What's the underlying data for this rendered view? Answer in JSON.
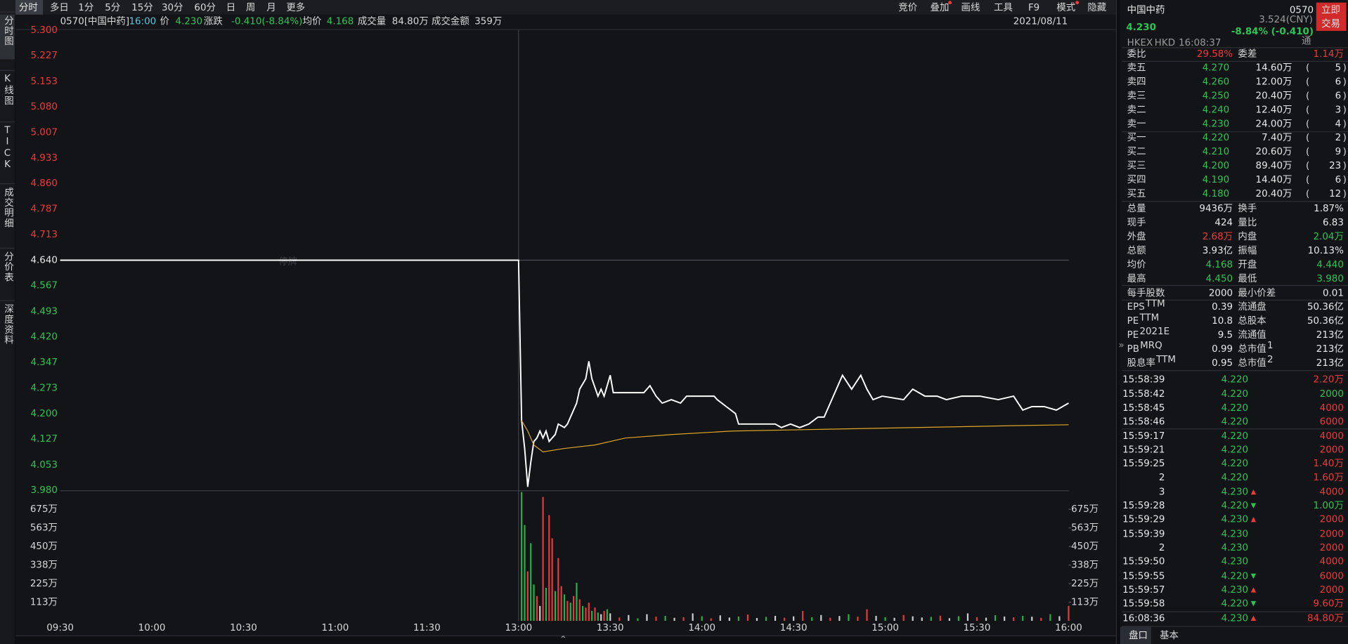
{
  "toolbar": {
    "tabs": [
      "分时",
      "多日",
      "1分",
      "5分",
      "15分",
      "30分",
      "60分",
      "日",
      "周",
      "月",
      "更多"
    ],
    "tools": [
      "竞价",
      "叠加",
      "画线",
      "工具",
      "F9",
      "模式",
      "隐藏"
    ]
  },
  "info": {
    "code": "0570[中国中药]",
    "time": "16:00",
    "price_label": "价",
    "price": "4.230",
    "change_label": "涨跌",
    "change": "-0.410(-8.84%)",
    "avg_label": "均价",
    "avg": "4.168",
    "volume_label": "成交量",
    "volume": "84.80万",
    "amount_label": "成交金额",
    "amount": "359万",
    "date": "2021/08/11"
  },
  "sidebar": [
    "分时图",
    "K线图",
    "TICK",
    "成交明细",
    "分价表",
    "深度资料"
  ],
  "chart_data": {
    "type": "line",
    "annotation": "停牌",
    "xlim": [
      0,
      330
    ],
    "xticks": [
      {
        "value": 0,
        "label": "09:30"
      },
      {
        "value": 30,
        "label": "10:00"
      },
      {
        "value": 60,
        "label": "10:30"
      },
      {
        "value": 90,
        "label": "11:00"
      },
      {
        "value": 120,
        "label": "11:30"
      },
      {
        "value": 150,
        "label": "13:00"
      },
      {
        "value": 180,
        "label": "13:30"
      },
      {
        "value": 210,
        "label": "14:00"
      },
      {
        "value": 240,
        "label": "14:30"
      },
      {
        "value": 270,
        "label": "15:00"
      },
      {
        "value": 300,
        "label": "15:30"
      },
      {
        "value": 330,
        "label": "16:00"
      }
    ],
    "ylim": [
      3.98,
      5.3
    ],
    "yticks": [
      {
        "value": 5.3,
        "label": "5.300"
      },
      {
        "value": 5.227,
        "label": "5.227"
      },
      {
        "value": 5.153,
        "label": "5.153"
      },
      {
        "value": 5.08,
        "label": "5.080"
      },
      {
        "value": 5.007,
        "label": "5.007"
      },
      {
        "value": 4.933,
        "label": "4.933"
      },
      {
        "value": 4.86,
        "label": "4.860"
      },
      {
        "value": 4.787,
        "label": "4.787"
      },
      {
        "value": 4.713,
        "label": "4.713"
      },
      {
        "value": 4.64,
        "label": "4.640"
      },
      {
        "value": 4.567,
        "label": "4.567"
      },
      {
        "value": 4.493,
        "label": "4.493"
      },
      {
        "value": 4.42,
        "label": "4.420"
      },
      {
        "value": 4.347,
        "label": "4.347"
      },
      {
        "value": 4.273,
        "label": "4.273"
      },
      {
        "value": 4.2,
        "label": "4.200"
      },
      {
        "value": 4.127,
        "label": "4.127"
      },
      {
        "value": 4.053,
        "label": "4.053"
      },
      {
        "value": 3.98,
        "label": "3.980"
      }
    ],
    "series": [
      {
        "color": "#ffffff",
        "x": [
          0,
          150,
          151,
          152,
          153,
          154,
          155,
          156,
          157,
          158,
          159,
          160,
          162,
          163,
          165,
          166,
          167,
          169,
          170,
          172,
          173,
          174,
          176,
          177,
          178,
          180,
          181,
          182,
          186,
          191,
          193,
          195,
          197,
          200,
          203,
          205,
          207,
          210,
          214,
          215,
          218,
          221,
          222,
          225,
          228,
          231,
          234,
          236,
          239,
          242,
          245,
          248,
          250,
          253,
          256,
          259,
          262,
          264,
          266,
          269,
          276,
          279,
          283,
          287,
          290,
          295,
          301,
          307,
          312,
          315,
          318,
          322,
          326,
          330
        ],
        "values": [
          4.64,
          4.64,
          4.18,
          4.1,
          3.99,
          4.06,
          4.12,
          4.13,
          4.15,
          4.13,
          4.15,
          4.12,
          4.14,
          4.17,
          4.16,
          4.17,
          4.19,
          4.23,
          4.27,
          4.3,
          4.35,
          4.3,
          4.25,
          4.27,
          4.25,
          4.31,
          4.26,
          4.26,
          4.26,
          4.26,
          4.28,
          4.25,
          4.23,
          4.24,
          4.23,
          4.25,
          4.25,
          4.25,
          4.25,
          4.24,
          4.22,
          4.2,
          4.17,
          4.17,
          4.17,
          4.17,
          4.17,
          4.16,
          4.17,
          4.16,
          4.17,
          4.19,
          4.19,
          4.25,
          4.31,
          4.27,
          4.31,
          4.27,
          4.24,
          4.25,
          4.24,
          4.27,
          4.25,
          4.25,
          4.24,
          4.25,
          4.25,
          4.24,
          4.25,
          4.21,
          4.22,
          4.22,
          4.21,
          4.23
        ]
      },
      {
        "color": "#e0a526",
        "x": [
          151,
          153,
          155,
          158,
          165,
          175,
          185,
          200,
          220,
          250,
          280,
          310,
          330
        ],
        "values": [
          4.18,
          4.15,
          4.11,
          4.09,
          4.1,
          4.11,
          4.13,
          4.14,
          4.15,
          4.155,
          4.16,
          4.165,
          4.168
        ]
      }
    ],
    "volume": {
      "ylim": [
        0,
        785
      ],
      "yticks": [
        {
          "value": 112.5,
          "label": "113万"
        },
        {
          "value": 225,
          "label": "225万"
        },
        {
          "value": 337.5,
          "label": "338万"
        },
        {
          "value": 450,
          "label": "450万"
        },
        {
          "value": 562.5,
          "label": "563万"
        },
        {
          "value": 675,
          "label": "675万"
        }
      ],
      "x": [
        151,
        152,
        153,
        154,
        155,
        156,
        157,
        158,
        159,
        160,
        161,
        162,
        163,
        164,
        165,
        166,
        167,
        168,
        169,
        170,
        171,
        172,
        173,
        174,
        175,
        176,
        177,
        178,
        179,
        180,
        183,
        186,
        189,
        192,
        195,
        198,
        201,
        204,
        207,
        210,
        213,
        216,
        219,
        222,
        225,
        228,
        231,
        234,
        237,
        240,
        243,
        246,
        249,
        252,
        255,
        258,
        261,
        264,
        267,
        270,
        273,
        276,
        279,
        282,
        285,
        288,
        291,
        294,
        297,
        300,
        303,
        306,
        309,
        312,
        315,
        318,
        321,
        324,
        327,
        330
      ],
      "values": [
        780,
        580,
        300,
        470,
        220,
        150,
        90,
        750,
        200,
        640,
        500,
        180,
        380,
        210,
        160,
        120,
        110,
        150,
        230,
        130,
        90,
        80,
        110,
        60,
        80,
        50,
        40,
        60,
        70,
        45,
        20,
        35,
        15,
        40,
        25,
        30,
        18,
        22,
        45,
        28,
        15,
        33,
        20,
        26,
        38,
        17,
        24,
        30,
        19,
        27,
        60,
        22,
        35,
        18,
        29,
        40,
        25,
        70,
        30,
        22,
        18,
        35,
        27,
        20,
        24,
        31,
        16,
        28,
        45,
        22,
        19,
        34,
        26,
        21,
        30,
        25,
        18,
        40,
        28,
        90
      ],
      "colors": [
        "#27b04a",
        "#27b04a",
        "#e23b3b",
        "#27b04a",
        "#27b04a",
        "#e23b3b",
        "#cfcfcf",
        "#e23b3b",
        "#27b04a",
        "#e23b3b",
        "#e23b3b",
        "#27b04a",
        "#e23b3b",
        "#e23b3b",
        "#27b04a",
        "#e23b3b",
        "#27b04a",
        "#e23b3b",
        "#27b04a",
        "#e23b3b",
        "#27b04a",
        "#e23b3b",
        "#e23b3b",
        "#27b04a",
        "#e23b3b",
        "#27b04a",
        "#cfcfcf",
        "#e23b3b",
        "#27b04a",
        "#cfcfcf",
        "#e23b3b",
        "#cfcfcf",
        "#27b04a",
        "#cfcfcf",
        "#e23b3b",
        "#27b04a",
        "#cfcfcf",
        "#e23b3b",
        "#cfcfcf",
        "#27b04a",
        "#e23b3b",
        "#cfcfcf",
        "#cfcfcf",
        "#27b04a",
        "#e23b3b",
        "#cfcfcf",
        "#27b04a",
        "#cfcfcf",
        "#e23b3b",
        "#cfcfcf",
        "#e23b3b",
        "#27b04a",
        "#cfcfcf",
        "#e23b3b",
        "#cfcfcf",
        "#27b04a",
        "#e23b3b",
        "#e23b3b",
        "#cfcfcf",
        "#27b04a",
        "#cfcfcf",
        "#e23b3b",
        "#cfcfcf",
        "#cfcfcf",
        "#27b04a",
        "#e23b3b",
        "#cfcfcf",
        "#27b04a",
        "#cfcfcf",
        "#e23b3b",
        "#cfcfcf",
        "#27b04a",
        "#cfcfcf",
        "#e23b3b",
        "#27b04a",
        "#cfcfcf",
        "#e23b3b",
        "#27b04a",
        "#cfcfcf",
        "#e23b3b"
      ]
    }
  },
  "quote": {
    "name": "中国中药",
    "code": "0570",
    "trade_button": [
      "立即",
      "交易"
    ],
    "price": "4.230",
    "cny": "3.524(CNY)",
    "change": "-8.84% (-0.410)",
    "exchange": "HKEX",
    "currency": "HKD",
    "time": "16:08:37",
    "tong": "通",
    "ratio_label": "委比",
    "ratio": "29.58%",
    "diff_label": "委差",
    "diff": "1.14万"
  },
  "order_book": [
    [
      "卖五",
      "4.270",
      "14.60万",
      "5"
    ],
    [
      "卖四",
      "4.260",
      "12.00万",
      "6"
    ],
    [
      "卖三",
      "4.250",
      "20.40万",
      "6"
    ],
    [
      "卖二",
      "4.240",
      "12.40万",
      "3"
    ],
    [
      "卖一",
      "4.230",
      "24.00万",
      "4"
    ],
    [
      "买一",
      "4.220",
      "7.40万",
      "2"
    ],
    [
      "买二",
      "4.210",
      "20.60万",
      "9"
    ],
    [
      "买三",
      "4.200",
      "89.40万",
      "23"
    ],
    [
      "买四",
      "4.190",
      "14.40万",
      "6"
    ],
    [
      "买五",
      "4.180",
      "20.40万",
      "12"
    ]
  ],
  "stats": [
    {
      "l1": "总量",
      "v1": "9436万",
      "c1": "white",
      "l2": "换手",
      "v2": "1.87%",
      "c2": "white"
    },
    {
      "l1": "现手",
      "v1": "424",
      "c1": "white",
      "l2": "量比",
      "v2": "6.83",
      "c2": "white"
    },
    {
      "l1": "外盘",
      "v1": "2.68万",
      "c1": "red",
      "l2": "内盘",
      "v2": "2.04万",
      "c2": "green"
    },
    {
      "l1": "总额",
      "v1": "3.93亿",
      "c1": "white",
      "l2": "振幅",
      "v2": "10.13%",
      "c2": "white"
    },
    {
      "l1": "均价",
      "v1": "4.168",
      "c1": "green",
      "l2": "开盘",
      "v2": "4.440",
      "c2": "green"
    },
    {
      "l1": "最高",
      "v1": "4.450",
      "c1": "green",
      "l2": "最低",
      "v2": "3.980",
      "c2": "green"
    },
    {
      "l1": "每手股数",
      "v1": "2000",
      "c1": "white",
      "l2": "最小价差",
      "v2": "0.01",
      "c2": "white"
    },
    {
      "l1": "EPS",
      "s1": "TTM",
      "v1": "0.39",
      "c1": "white",
      "l2": "流通盘",
      "v2": "50.36亿",
      "c2": "white"
    },
    {
      "l1": "PE",
      "s1": "TTM",
      "v1": "10.8",
      "c1": "white",
      "l2": "总股本",
      "v2": "50.36亿",
      "c2": "white"
    },
    {
      "l1": "PE",
      "s1": "2021E",
      "v1": "9.5",
      "c1": "white",
      "l2": "流通值",
      "v2": "213亿",
      "c2": "white"
    },
    {
      "l1": "PB",
      "s1": "MRQ",
      "v1": "0.99",
      "c1": "white",
      "l2": "总市值",
      "s2": "1",
      "v2": "213亿",
      "c2": "white"
    },
    {
      "l1": "股息率",
      "s1": "TTM",
      "v1": "0.95",
      "c1": "white",
      "l2": "总市值",
      "s2": "2",
      "v2": "213亿",
      "c2": "white"
    }
  ],
  "trades": [
    {
      "time": "15:58:39",
      "price": "4.220",
      "volume": "2.20万",
      "color": "red"
    },
    {
      "time": "15:58:42",
      "price": "4.220",
      "volume": "2000",
      "color": "green"
    },
    {
      "time": "15:58:45",
      "price": "4.220",
      "volume": "4000",
      "color": "red"
    },
    {
      "time": "15:58:46",
      "price": "4.220",
      "volume": "6000",
      "color": "red"
    },
    {
      "time": "15:59:17",
      "price": "4.220",
      "volume": "4000",
      "color": "red"
    },
    {
      "time": "15:59:21",
      "price": "4.220",
      "volume": "2000",
      "color": "red"
    },
    {
      "time": "15:59:25",
      "price": "4.220",
      "volume": "1.40万",
      "color": "red"
    },
    {
      "time": "2",
      "price": "4.220",
      "volume": "1.60万",
      "color": "red"
    },
    {
      "time": "3",
      "price": "4.230",
      "arrow": "up",
      "volume": "4000",
      "color": "red"
    },
    {
      "time": "15:59:28",
      "price": "4.220",
      "arrow": "down",
      "volume": "1.00万",
      "color": "green"
    },
    {
      "time": "15:59:29",
      "price": "4.230",
      "arrow": "up",
      "volume": "2000",
      "color": "red"
    },
    {
      "time": "15:59:39",
      "price": "4.230",
      "volume": "2000",
      "color": "red"
    },
    {
      "time": "2",
      "price": "4.230",
      "volume": "2000",
      "color": "red"
    },
    {
      "time": "15:59:50",
      "price": "4.230",
      "volume": "4000",
      "color": "red"
    },
    {
      "time": "15:59:55",
      "price": "4.220",
      "arrow": "down",
      "volume": "6000",
      "color": "red"
    },
    {
      "time": "15:59:57",
      "price": "4.230",
      "arrow": "up",
      "volume": "2000",
      "color": "red"
    },
    {
      "time": "15:59:58",
      "price": "4.220",
      "arrow": "down",
      "volume": "9.60万",
      "color": "red"
    },
    {
      "time": "16:08:36",
      "price": "4.230",
      "arrow": "up",
      "volume": "84.80万",
      "color": "red"
    }
  ],
  "bottom_tabs": [
    "盘口",
    "基本"
  ]
}
